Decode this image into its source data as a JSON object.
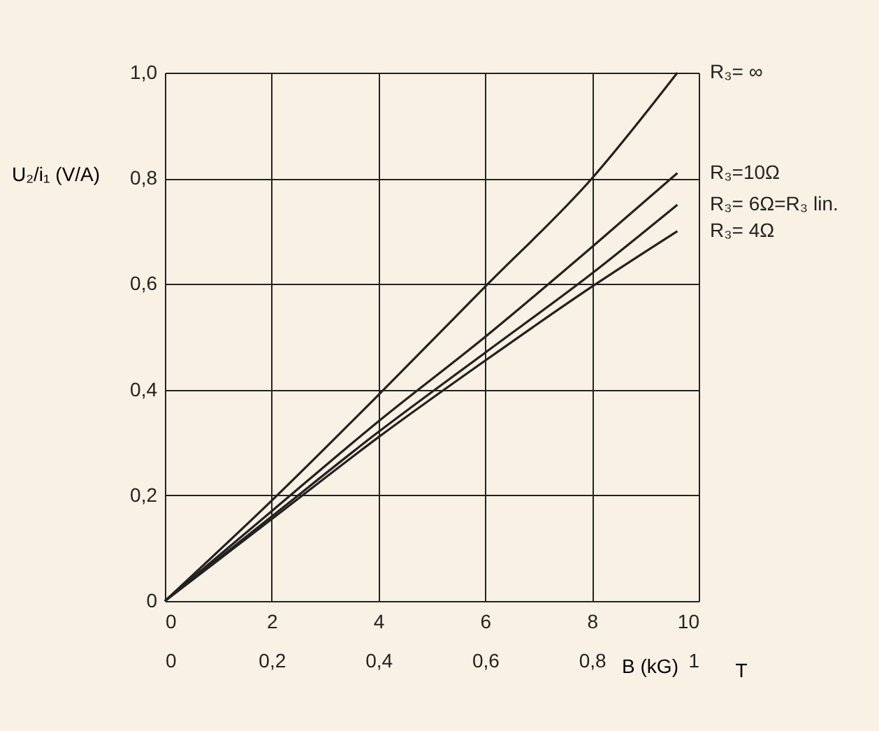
{
  "chart_data": {
    "type": "line",
    "xlabel": "B (kG)",
    "ylabel": "U₂/i₁ (V/A)",
    "x2label": "T",
    "x": [
      0,
      2,
      4,
      6,
      8,
      9.6
    ],
    "series": [
      {
        "name": "R₃= ∞",
        "color": "#222222",
        "values": [
          0,
          0.19,
          0.39,
          0.595,
          0.8,
          1.0
        ]
      },
      {
        "name": "R₃=10Ω",
        "color": "#222222",
        "values": [
          0,
          0.17,
          0.34,
          0.5,
          0.67,
          0.81
        ]
      },
      {
        "name": "R₃= 6Ω=R₃ lin.",
        "color": "#222222",
        "values": [
          0,
          0.16,
          0.32,
          0.47,
          0.62,
          0.75
        ]
      },
      {
        "name": "R₃= 4Ω",
        "color": "#222222",
        "values": [
          0,
          0.155,
          0.31,
          0.455,
          0.595,
          0.7
        ]
      }
    ],
    "xlim": [
      0,
      10
    ],
    "xticks": [
      0,
      2,
      4,
      6,
      8,
      10
    ],
    "ylim": [
      0,
      1.0
    ],
    "yticks": [
      0,
      {
        "value": 0.2,
        "label": "0,2"
      },
      {
        "value": 0.4,
        "label": "0,4"
      },
      {
        "value": 0.6,
        "label": "0,6"
      },
      {
        "value": 0.8,
        "label": "0,8"
      },
      {
        "value": 1.0,
        "label": "1,0"
      }
    ],
    "x2lim": [
      0,
      1
    ],
    "x2ticks": [
      0,
      {
        "value": 0.2,
        "label": "0,2"
      },
      {
        "value": 0.4,
        "label": "0,4"
      },
      {
        "value": 0.6,
        "label": "0,6"
      },
      {
        "value": 0.8,
        "label": "0,8"
      },
      1
    ],
    "grid": true,
    "marker": "none",
    "line_style": "solid"
  }
}
